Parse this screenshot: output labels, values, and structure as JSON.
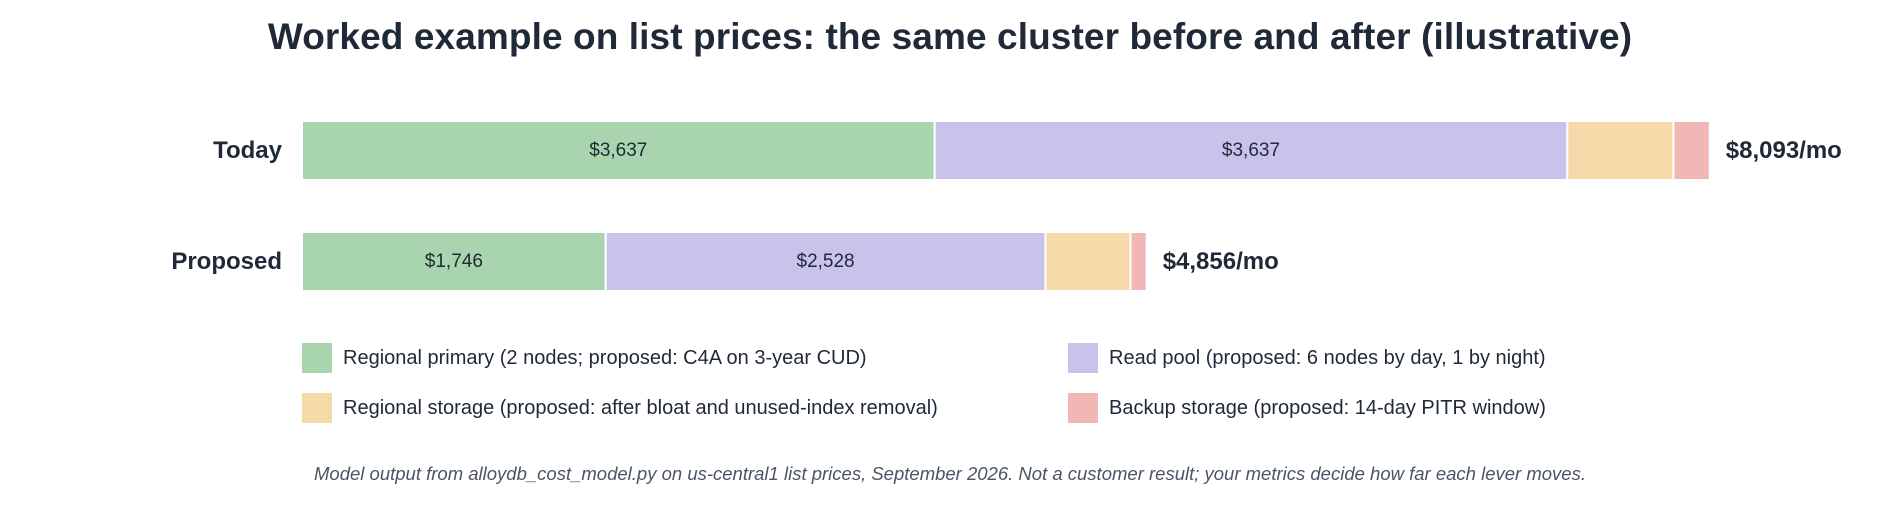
{
  "chart_data": {
    "type": "bar",
    "orientation": "horizontal",
    "stacked": true,
    "title": "Worked example on list prices: the same cluster before and after (illustrative)",
    "categories": [
      "Today",
      "Proposed"
    ],
    "series": [
      {
        "name": "Regional primary (2 nodes; proposed: C4A on 3-year CUD)",
        "color": "#a8d5ae",
        "values": [
          3637,
          1746
        ],
        "labels": [
          "$3,637",
          "$1,746"
        ]
      },
      {
        "name": "Read pool (proposed: 6 nodes by day, 1 by night)",
        "color": "#c9c3ec",
        "values": [
          3637,
          2528
        ],
        "labels": [
          "$3,637",
          "$2,528"
        ]
      },
      {
        "name": "Regional storage (proposed: after bloat and unused-index removal)",
        "color": "#f5d9a8",
        "values": [
          610,
          489
        ],
        "labels": [
          "",
          ""
        ]
      },
      {
        "name": "Backup storage (proposed: 14-day PITR window)",
        "color": "#f1b7b7",
        "values": [
          209,
          93
        ],
        "labels": [
          "",
          ""
        ]
      }
    ],
    "totals": [
      "$8,093/mo",
      "$4,856/mo"
    ],
    "grid": false,
    "legend_position": "bottom"
  },
  "footnote": "Model output from alloydb_cost_model.py on us-central1 list prices, September 2026. Not a customer result; your metrics decide how far each lever moves."
}
